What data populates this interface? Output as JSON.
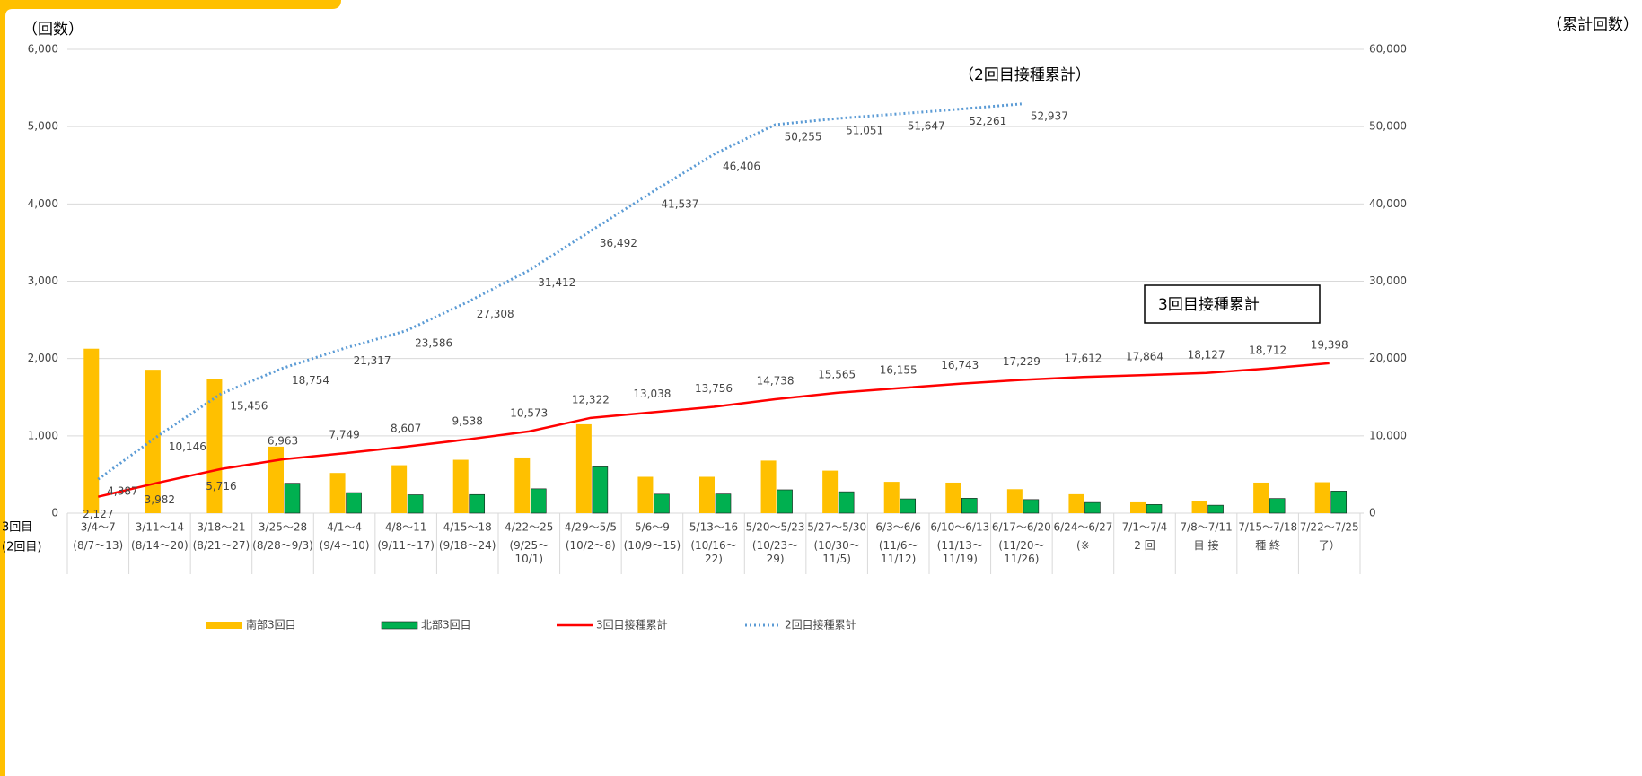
{
  "chart_data": {
    "type": "bar",
    "ylabel": "（回数）",
    "y2label": "（累計回数）",
    "row_labels": [
      "3回目",
      "(2回目)"
    ],
    "categories": [
      "3/4～7",
      "3/11～14",
      "3/18～21",
      "3/25～28",
      "4/1～4",
      "4/8～11",
      "4/15～18",
      "4/22～25",
      "4/29～5/5",
      "5/6～9",
      "5/13～16",
      "5/20～5/23",
      "5/27～5/30",
      "6/3～6/6",
      "6/10～6/13",
      "6/17～6/20",
      "6/24～6/27",
      "7/1～7/4",
      "7/8～7/11",
      "7/15～7/18",
      "7/22～7/25"
    ],
    "categories2": [
      "(8/7～13)",
      "(8/14～20)",
      "(8/21～27)",
      "(8/28～9/3)",
      "(9/4～10)",
      "(9/11～17)",
      "(9/18～24)",
      "(9/25～10/1)",
      "(10/2～8)",
      "(10/9～15)",
      "(10/16～22)",
      "(10/23～29)",
      "(10/30～11/5)",
      "(11/6～11/12)",
      "(11/13～11/19)",
      "(11/20～11/26)",
      "(※",
      "2 回",
      "目 接",
      "種 終",
      "了）"
    ],
    "ylim": [
      0,
      6000
    ],
    "yticks": [
      0,
      {
        "value": 1000,
        "label": "1,000"
      },
      {
        "value": 2000,
        "label": "2,000"
      },
      {
        "value": 3000,
        "label": "3,000"
      },
      {
        "value": 4000,
        "label": "4,000"
      },
      {
        "value": 5000,
        "label": "5,000"
      },
      {
        "value": 6000,
        "label": "6,000"
      }
    ],
    "y2lim": [
      0,
      60000
    ],
    "y2ticks": [
      0,
      {
        "value": 10000,
        "label": "10,000"
      },
      {
        "value": 20000,
        "label": "20,000"
      },
      {
        "value": 30000,
        "label": "30,000"
      },
      {
        "value": 40000,
        "label": "40,000"
      },
      {
        "value": 50000,
        "label": "50,000"
      },
      {
        "value": 60000,
        "label": "60,000"
      }
    ],
    "grid": true,
    "annotations": [
      "（2回目接種累計）",
      "3回目接種累計"
    ],
    "series": [
      {
        "name": "南部3回目",
        "type": "bar",
        "color": "#ffc000",
        "values": [
          2127,
          1855,
          1734,
          860,
          520,
          620,
          690,
          720,
          1150,
          470,
          470,
          680,
          550,
          405,
          395,
          310,
          245,
          140,
          160,
          395,
          400
        ]
      },
      {
        "name": "北部3回目",
        "type": "bar",
        "color": "#00b050",
        "values": [
          0,
          0,
          0,
          387,
          266,
          238,
          241,
          315,
          599,
          246,
          248,
          302,
          277,
          185,
          193,
          176,
          138,
          112,
          103,
          190,
          286
        ]
      },
      {
        "name": "3回目接種累計",
        "type": "line",
        "axis": "y2",
        "color": "#ff0000",
        "values": [
          2127,
          3982,
          5716,
          6963,
          7749,
          8607,
          9538,
          10573,
          12322,
          13038,
          13756,
          14738,
          15565,
          16155,
          16743,
          17229,
          17612,
          17864,
          18127,
          18712,
          19398
        ],
        "value_labels": [
          "2,127",
          "3,982",
          "5,716",
          "6,963",
          "7,749",
          "8,607",
          "9,538",
          "10,573",
          "12,322",
          "13,038",
          "13,756",
          "14,738",
          "15,565",
          "16,155",
          "16,743",
          "17,229",
          "17,612",
          "17,864",
          "18,127",
          "18,712",
          "19,398"
        ]
      },
      {
        "name": "2回目接種累計",
        "type": "line",
        "axis": "y2",
        "color": "#5b9bd5",
        "dotted": true,
        "values": [
          4387,
          10146,
          15456,
          18754,
          21317,
          23586,
          27308,
          31412,
          36492,
          41537,
          46406,
          50255,
          51051,
          51647,
          52261,
          52937,
          null,
          null,
          null,
          null,
          null
        ],
        "value_labels": [
          "4,387",
          "10,146",
          "15,456",
          "18,754",
          "21,317",
          "23,586",
          "27,308",
          "31,412",
          "36,492",
          "41,537",
          "46,406",
          "50,255",
          "51,051",
          "51,647",
          "52,261",
          "52,937",
          null,
          null,
          null,
          null,
          null
        ]
      }
    ]
  }
}
